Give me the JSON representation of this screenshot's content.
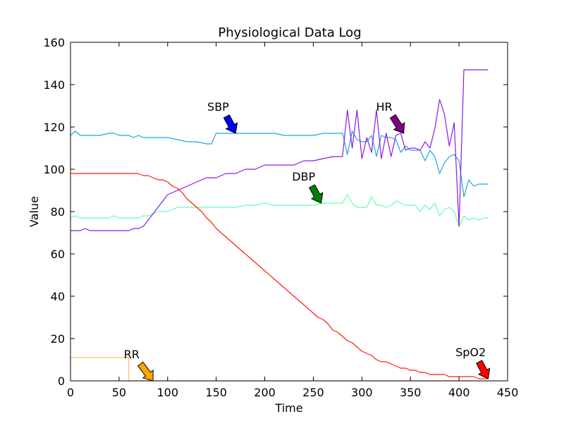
{
  "chart_data": {
    "type": "line",
    "title": "Physiological Data Log",
    "xlabel": "Time",
    "ylabel": "Value",
    "xlim": [
      0,
      450
    ],
    "ylim": [
      0,
      160
    ],
    "xticks": [
      0,
      50,
      100,
      150,
      200,
      250,
      300,
      350,
      400,
      450
    ],
    "yticks": [
      0,
      20,
      40,
      60,
      80,
      100,
      120,
      140,
      160
    ],
    "grid": false,
    "legend": "none",
    "series": [
      {
        "name": "SBP",
        "color": "#1aa7e0",
        "x": [
          0,
          5,
          10,
          20,
          30,
          40,
          45,
          50,
          55,
          60,
          65,
          70,
          75,
          80,
          90,
          100,
          110,
          120,
          130,
          140,
          145,
          150,
          160,
          170,
          180,
          190,
          200,
          210,
          220,
          230,
          240,
          250,
          260,
          270,
          280,
          285,
          290,
          295,
          300,
          305,
          310,
          315,
          320,
          325,
          330,
          335,
          340,
          345,
          350,
          355,
          360,
          365,
          370,
          375,
          380,
          385,
          390,
          395,
          400,
          405,
          410,
          415,
          420,
          430
        ],
        "y": [
          116,
          118,
          116,
          116,
          116,
          117,
          117,
          116,
          116,
          116,
          115,
          116,
          115,
          115,
          115,
          115,
          114,
          113,
          113,
          112,
          112,
          117,
          117,
          117,
          117,
          117,
          117,
          117,
          116,
          116,
          116,
          116,
          117,
          117,
          117,
          107,
          118,
          114,
          113,
          113,
          116,
          106,
          116,
          115,
          115,
          114,
          108,
          111,
          109,
          109,
          109,
          104,
          109,
          106,
          98,
          103,
          106,
          107,
          104,
          87,
          95,
          92,
          93,
          93
        ]
      },
      {
        "name": "DBP",
        "color": "#66ffaa",
        "x": [
          0,
          5,
          10,
          20,
          30,
          40,
          45,
          50,
          60,
          70,
          75,
          80,
          90,
          100,
          110,
          120,
          130,
          140,
          150,
          160,
          170,
          180,
          190,
          200,
          210,
          220,
          230,
          240,
          250,
          260,
          270,
          280,
          285,
          290,
          295,
          300,
          305,
          310,
          315,
          320,
          325,
          330,
          335,
          340,
          345,
          350,
          355,
          360,
          365,
          370,
          375,
          380,
          385,
          390,
          395,
          400,
          405,
          410,
          415,
          420,
          425,
          430
        ],
        "y": [
          77,
          78,
          77,
          77,
          77,
          77,
          78,
          77,
          77,
          77,
          78,
          78,
          80,
          80,
          82,
          82,
          82,
          82,
          82,
          82,
          82,
          83,
          83,
          84,
          83,
          83,
          83,
          83,
          83,
          84,
          84,
          84,
          88,
          84,
          82,
          82,
          82,
          87,
          83,
          83,
          82,
          83,
          85,
          84,
          83,
          83,
          83,
          80,
          83,
          81,
          84,
          78,
          81,
          82,
          80,
          73,
          78,
          76,
          77,
          76,
          77,
          77
        ]
      },
      {
        "name": "HR",
        "color": "#8a19e6",
        "x": [
          0,
          5,
          10,
          15,
          20,
          30,
          40,
          50,
          60,
          65,
          70,
          75,
          80,
          90,
          100,
          110,
          120,
          130,
          140,
          150,
          160,
          170,
          180,
          190,
          200,
          210,
          220,
          230,
          240,
          250,
          260,
          270,
          280,
          285,
          290,
          295,
          300,
          305,
          310,
          315,
          320,
          325,
          330,
          335,
          340,
          345,
          350,
          355,
          360,
          365,
          370,
          375,
          380,
          385,
          390,
          395,
          400,
          405,
          410,
          420,
          430
        ],
        "y": [
          71,
          71,
          71,
          72,
          71,
          71,
          71,
          71,
          71,
          72,
          72,
          73,
          76,
          82,
          88,
          90,
          92,
          94,
          96,
          96,
          98,
          98,
          100,
          100,
          102,
          102,
          102,
          102,
          104,
          104,
          105,
          106,
          106,
          128,
          110,
          128,
          105,
          115,
          108,
          128,
          105,
          117,
          106,
          116,
          117,
          109,
          110,
          110,
          109,
          113,
          110,
          119,
          133,
          126,
          111,
          122,
          73,
          147,
          147,
          147,
          147
        ]
      },
      {
        "name": "SpO2",
        "color": "#ff1a0d",
        "x": [
          0,
          10,
          20,
          40,
          60,
          70,
          75,
          80,
          85,
          90,
          95,
          100,
          105,
          110,
          115,
          120,
          125,
          130,
          135,
          140,
          145,
          150,
          160,
          170,
          180,
          190,
          200,
          210,
          220,
          230,
          240,
          250,
          255,
          260,
          265,
          270,
          275,
          280,
          285,
          290,
          295,
          300,
          305,
          310,
          315,
          320,
          325,
          330,
          335,
          340,
          345,
          350,
          355,
          360,
          365,
          370,
          375,
          380,
          385,
          390,
          395,
          400,
          405,
          410,
          415,
          420,
          425,
          430
        ],
        "y": [
          98,
          98,
          98,
          98,
          98,
          98,
          97,
          97,
          96,
          95,
          95,
          94,
          92,
          91,
          89,
          86,
          84,
          82,
          80,
          77,
          75,
          72,
          68,
          64,
          60,
          56,
          52,
          48,
          44,
          40,
          36,
          32,
          30,
          29,
          27,
          24,
          23,
          21,
          19,
          18,
          16,
          14,
          13,
          12,
          10,
          9,
          9,
          8,
          7,
          6,
          6,
          5,
          5,
          4,
          4,
          3,
          3,
          3,
          3,
          2,
          2,
          2,
          2,
          2,
          2,
          1,
          1,
          1
        ]
      },
      {
        "name": "RR",
        "color": "#ffbb66",
        "x": [
          0,
          60,
          60,
          430
        ],
        "y": [
          11,
          11,
          0,
          0
        ]
      }
    ],
    "annotations": [
      {
        "text": "SBP",
        "series": "SBP",
        "x": 170,
        "y": 117,
        "text_x": 152,
        "text_y": 127,
        "arrow_color": "#0000ff"
      },
      {
        "text": "DBP",
        "series": "DBP",
        "x": 258,
        "y": 84,
        "text_x": 240,
        "text_y": 94,
        "arrow_color": "#008000"
      },
      {
        "text": "HR",
        "series": "HR",
        "x": 343,
        "y": 117,
        "text_x": 323,
        "text_y": 127,
        "arrow_color": "#800080"
      },
      {
        "text": "RR",
        "series": "RR",
        "x": 85,
        "y": 0,
        "text_x": 63,
        "text_y": 10,
        "arrow_color": "#ffa500"
      },
      {
        "text": "SpO2",
        "series": "SpO2",
        "x": 430,
        "y": 1,
        "text_x": 412,
        "text_y": 11,
        "arrow_color": "#ff0000"
      }
    ]
  }
}
